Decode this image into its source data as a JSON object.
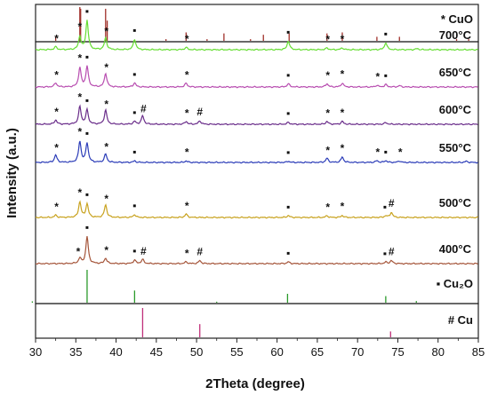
{
  "chart_data": {
    "type": "line",
    "xlabel": "2Theta (degree)",
    "ylabel": "Intensity (a.u.)",
    "xlim": [
      30,
      85
    ],
    "x_ticks": [
      30,
      35,
      40,
      45,
      50,
      55,
      60,
      65,
      70,
      75,
      80,
      85
    ],
    "reference_panels": [
      {
        "label": "* CuO",
        "color": "#a0302a",
        "peaks": [
          {
            "x": 32.5,
            "h": 0.12
          },
          {
            "x": 35.5,
            "h": 1.0
          },
          {
            "x": 35.6,
            "h": 0.95
          },
          {
            "x": 38.7,
            "h": 0.95
          },
          {
            "x": 38.9,
            "h": 0.6
          },
          {
            "x": 46.2,
            "h": 0.05
          },
          {
            "x": 48.7,
            "h": 0.25
          },
          {
            "x": 51.3,
            "h": 0.05
          },
          {
            "x": 53.4,
            "h": 0.22
          },
          {
            "x": 56.7,
            "h": 0.05
          },
          {
            "x": 58.3,
            "h": 0.18
          },
          {
            "x": 61.5,
            "h": 0.22
          },
          {
            "x": 66.2,
            "h": 0.22
          },
          {
            "x": 68.1,
            "h": 0.25
          },
          {
            "x": 72.4,
            "h": 0.12
          },
          {
            "x": 75.2,
            "h": 0.12
          },
          {
            "x": 82.3,
            "h": 0.05
          },
          {
            "x": 83.8,
            "h": 0.05
          }
        ]
      },
      {
        "label": "▪ Cu₂O",
        "color": "#2a9a2a",
        "peaks": [
          {
            "x": 29.6,
            "h": 0.04
          },
          {
            "x": 36.4,
            "h": 1.0
          },
          {
            "x": 42.3,
            "h": 0.37
          },
          {
            "x": 52.5,
            "h": 0.03
          },
          {
            "x": 61.3,
            "h": 0.27
          },
          {
            "x": 73.5,
            "h": 0.2
          },
          {
            "x": 77.3,
            "h": 0.05
          }
        ]
      },
      {
        "label": "# Cu",
        "color": "#c0307a",
        "peaks": [
          {
            "x": 43.3,
            "h": 1.0
          },
          {
            "x": 50.4,
            "h": 0.45
          },
          {
            "x": 74.1,
            "h": 0.2
          }
        ]
      }
    ],
    "series": [
      {
        "name": "700°C",
        "color": "#66dd33",
        "peaks": [
          {
            "x": 32.5,
            "h": 0.1
          },
          {
            "x": 35.5,
            "h": 0.45
          },
          {
            "x": 36.4,
            "h": 1.0
          },
          {
            "x": 38.7,
            "h": 0.4
          },
          {
            "x": 42.3,
            "h": 0.36
          },
          {
            "x": 48.7,
            "h": 0.08
          },
          {
            "x": 61.4,
            "h": 0.3
          },
          {
            "x": 66.2,
            "h": 0.06
          },
          {
            "x": 68.1,
            "h": 0.06
          },
          {
            "x": 73.5,
            "h": 0.24
          },
          {
            "x": 77.4,
            "h": 0.04
          }
        ],
        "markers": [
          {
            "x": 32.6,
            "m": "*"
          },
          {
            "x": 35.5,
            "m": "*"
          },
          {
            "x": 36.4,
            "m": "▪"
          },
          {
            "x": 38.8,
            "m": "*"
          },
          {
            "x": 42.3,
            "m": "▪"
          },
          {
            "x": 48.8,
            "m": "*"
          },
          {
            "x": 61.4,
            "m": "▪"
          },
          {
            "x": 66.3,
            "m": "*"
          },
          {
            "x": 68.1,
            "m": "*"
          },
          {
            "x": 73.5,
            "m": "▪"
          }
        ]
      },
      {
        "name": "650°C",
        "color": "#b84db0",
        "peaks": [
          {
            "x": 32.5,
            "h": 0.15
          },
          {
            "x": 35.5,
            "h": 0.7
          },
          {
            "x": 36.4,
            "h": 0.75
          },
          {
            "x": 38.7,
            "h": 0.5
          },
          {
            "x": 42.3,
            "h": 0.15
          },
          {
            "x": 48.7,
            "h": 0.14
          },
          {
            "x": 61.4,
            "h": 0.12
          },
          {
            "x": 66.2,
            "h": 0.12
          },
          {
            "x": 68.1,
            "h": 0.14
          },
          {
            "x": 72.4,
            "h": 0.06
          },
          {
            "x": 73.5,
            "h": 0.09
          },
          {
            "x": 75.2,
            "h": 0.05
          }
        ],
        "markers": [
          {
            "x": 32.6,
            "m": "*"
          },
          {
            "x": 35.5,
            "m": "*"
          },
          {
            "x": 36.4,
            "m": "▪"
          },
          {
            "x": 38.8,
            "m": "*"
          },
          {
            "x": 42.3,
            "m": "▪"
          },
          {
            "x": 48.8,
            "m": "*"
          },
          {
            "x": 61.4,
            "m": "▪"
          },
          {
            "x": 66.3,
            "m": "*"
          },
          {
            "x": 68.1,
            "m": "*"
          },
          {
            "x": 72.5,
            "m": "*"
          },
          {
            "x": 73.5,
            "m": "▪"
          }
        ]
      },
      {
        "name": "600°C",
        "color": "#6a2d8a",
        "peaks": [
          {
            "x": 32.5,
            "h": 0.15
          },
          {
            "x": 35.5,
            "h": 0.62
          },
          {
            "x": 36.4,
            "h": 0.5
          },
          {
            "x": 38.7,
            "h": 0.5
          },
          {
            "x": 42.3,
            "h": 0.1
          },
          {
            "x": 43.3,
            "h": 0.3
          },
          {
            "x": 48.7,
            "h": 0.1
          },
          {
            "x": 50.4,
            "h": 0.12
          },
          {
            "x": 61.4,
            "h": 0.07
          },
          {
            "x": 66.2,
            "h": 0.1
          },
          {
            "x": 68.1,
            "h": 0.1
          },
          {
            "x": 73.5,
            "h": 0.06
          }
        ],
        "markers": [
          {
            "x": 32.6,
            "m": "*"
          },
          {
            "x": 35.5,
            "m": "*"
          },
          {
            "x": 36.4,
            "m": "▪"
          },
          {
            "x": 38.8,
            "m": "*"
          },
          {
            "x": 42.3,
            "m": "▪"
          },
          {
            "x": 43.4,
            "m": "#"
          },
          {
            "x": 48.8,
            "m": "*"
          },
          {
            "x": 50.4,
            "m": "#"
          },
          {
            "x": 61.4,
            "m": "▪"
          },
          {
            "x": 66.3,
            "m": "*"
          },
          {
            "x": 68.1,
            "m": "*"
          }
        ]
      },
      {
        "name": "550°C",
        "color": "#2b3cb8",
        "peaks": [
          {
            "x": 32.5,
            "h": 0.25
          },
          {
            "x": 35.5,
            "h": 0.7
          },
          {
            "x": 36.4,
            "h": 0.65
          },
          {
            "x": 38.7,
            "h": 0.28
          },
          {
            "x": 42.3,
            "h": 0.05
          },
          {
            "x": 48.7,
            "h": 0.05
          },
          {
            "x": 61.4,
            "h": 0.04
          },
          {
            "x": 66.2,
            "h": 0.14
          },
          {
            "x": 68.1,
            "h": 0.18
          },
          {
            "x": 72.4,
            "h": 0.06
          },
          {
            "x": 73.5,
            "h": 0.06
          },
          {
            "x": 75.2,
            "h": 0.05
          },
          {
            "x": 83.5,
            "h": 0.04
          }
        ],
        "markers": [
          {
            "x": 32.6,
            "m": "*"
          },
          {
            "x": 35.5,
            "m": "*"
          },
          {
            "x": 36.4,
            "m": "▪"
          },
          {
            "x": 38.8,
            "m": "*"
          },
          {
            "x": 42.3,
            "m": "▪"
          },
          {
            "x": 48.8,
            "m": "*"
          },
          {
            "x": 61.4,
            "m": "▪"
          },
          {
            "x": 66.3,
            "m": "*"
          },
          {
            "x": 68.1,
            "m": "*"
          },
          {
            "x": 72.5,
            "m": "*"
          },
          {
            "x": 73.5,
            "m": "▪"
          },
          {
            "x": 75.3,
            "m": "*"
          }
        ]
      },
      {
        "name": "500°C",
        "color": "#c8a21e",
        "peaks": [
          {
            "x": 32.5,
            "h": 0.08
          },
          {
            "x": 35.5,
            "h": 0.55
          },
          {
            "x": 36.4,
            "h": 0.48
          },
          {
            "x": 38.7,
            "h": 0.45
          },
          {
            "x": 42.3,
            "h": 0.1
          },
          {
            "x": 48.7,
            "h": 0.12
          },
          {
            "x": 61.4,
            "h": 0.07
          },
          {
            "x": 66.2,
            "h": 0.06
          },
          {
            "x": 68.1,
            "h": 0.07
          },
          {
            "x": 73.5,
            "h": 0.06
          },
          {
            "x": 74.2,
            "h": 0.18
          }
        ],
        "markers": [
          {
            "x": 32.6,
            "m": "*"
          },
          {
            "x": 35.5,
            "m": "*"
          },
          {
            "x": 36.4,
            "m": "▪"
          },
          {
            "x": 38.8,
            "m": "*"
          },
          {
            "x": 42.3,
            "m": "▪"
          },
          {
            "x": 48.8,
            "m": "*"
          },
          {
            "x": 61.4,
            "m": "▪"
          },
          {
            "x": 66.3,
            "m": "*"
          },
          {
            "x": 68.1,
            "m": "*"
          },
          {
            "x": 73.4,
            "m": "▪"
          },
          {
            "x": 74.2,
            "m": "#"
          }
        ]
      },
      {
        "name": "400°C",
        "color": "#a5553a",
        "peaks": [
          {
            "x": 35.5,
            "h": 0.18
          },
          {
            "x": 36.4,
            "h": 0.9
          },
          {
            "x": 38.7,
            "h": 0.18
          },
          {
            "x": 42.3,
            "h": 0.12
          },
          {
            "x": 43.3,
            "h": 0.14
          },
          {
            "x": 48.7,
            "h": 0.06
          },
          {
            "x": 50.4,
            "h": 0.1
          },
          {
            "x": 61.4,
            "h": 0.06
          },
          {
            "x": 73.5,
            "h": 0.05
          },
          {
            "x": 74.2,
            "h": 0.1
          }
        ],
        "markers": [
          {
            "x": 35.3,
            "m": "*"
          },
          {
            "x": 36.4,
            "m": "▪"
          },
          {
            "x": 38.8,
            "m": "*"
          },
          {
            "x": 42.3,
            "m": "▪"
          },
          {
            "x": 43.4,
            "m": "#"
          },
          {
            "x": 48.8,
            "m": "*"
          },
          {
            "x": 50.4,
            "m": "#"
          },
          {
            "x": 61.4,
            "m": "▪"
          },
          {
            "x": 73.4,
            "m": "▪"
          },
          {
            "x": 74.2,
            "m": "#"
          }
        ]
      }
    ]
  }
}
